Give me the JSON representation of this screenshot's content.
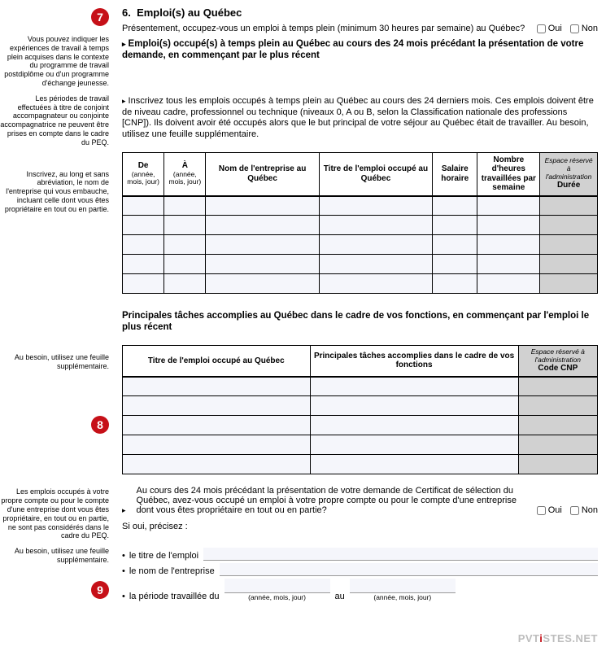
{
  "section": {
    "number": "6.",
    "title": "Emploi(s) au Québec"
  },
  "badges": {
    "b7": "7",
    "b8": "8",
    "b9": "9"
  },
  "q1": {
    "text": "Présentement, occupez-vous un emploi à temps plein (minimum 30 heures par semaine) au Québec?",
    "oui": "Oui",
    "non": "Non"
  },
  "notes": {
    "n1": "Vous pouvez indiquer les expériences de travail à temps plein acquises dans le contexte du programme de travail postdiplôme ou d'un programme d'échange jeunesse.",
    "n2": "Les périodes de travail effectuées à titre de conjoint accompagnateur ou conjointe accompagnatrice ne peuvent être prises en compte dans le cadre du PEQ.",
    "n3": "Inscrivez, au long et sans abréviation, le nom de l'entreprise qui vous embauche, incluant celle dont vous êtes propriétaire en tout ou en partie.",
    "n4": "Au besoin, utilisez une feuille supplémentaire.",
    "n5": "Les emplois occupés à votre propre compte ou pour le compte d'une entreprise dont vous êtes propriétaire, en tout ou en partie, ne sont pas considérés dans le cadre du PEQ.",
    "n6": "Au besoin, utilisez une feuille supplémentaire."
  },
  "subtitle1": "Emploi(s) occupé(s) à temps plein au Québec au cours des 24 mois précédant la présentation de votre demande, en commençant par le plus récent",
  "para1": "Inscrivez tous les emplois occupés à temps plein au Québec au cours des 24 derniers mois. Ces emplois doivent être de niveau cadre, professionnel ou technique (niveaux 0, A ou B, selon la Classification nationale des professions [CNP]). Ils doivent avoir été occupés alors que le but principal de votre séjour au Québec était de travailler. Au besoin, utilisez une feuille supplémentaire.",
  "table1": {
    "h_de": "De",
    "h_de_sub": "(année, mois, jour)",
    "h_a": "À",
    "h_a_sub": "(année, mois, jour)",
    "h_nom": "Nom de l'entreprise au Québec",
    "h_titre": "Titre de l'emploi occupé au Québec",
    "h_salaire": "Salaire horaire",
    "h_heures": "Nombre d'heures travaillées par semaine",
    "h_admin_it": "Espace réservé à l'administration",
    "h_admin": "Durée",
    "rows": 5,
    "col_widths": [
      "50px",
      "50px",
      "136px",
      "136px",
      "54px",
      "75px",
      "69px"
    ]
  },
  "subtitle2": "Principales tâches accomplies au Québec dans le cadre de vos fonctions, en commençant par l'emploi le plus récent",
  "table2": {
    "h_titre": "Titre de l'emploi occupé au Québec",
    "h_taches": "Principales tâches accomplies dans le cadre de vos fonctions",
    "h_admin_it": "Espace réservé à l'administration",
    "h_admin": "Code CNP",
    "rows": 5,
    "col_widths": [
      "225px",
      "250px",
      "95px"
    ]
  },
  "q2": {
    "text": "Au cours des 24 mois précédant la présentation de votre demande de Certificat de sélection du Québec, avez-vous occupé un emploi à votre propre compte ou pour le compte d'une entreprise dont vous êtes propriétaire en tout ou en partie?",
    "oui": "Oui",
    "non": "Non"
  },
  "precise": {
    "label": "Si oui, précisez :",
    "l1": "le titre de l'emploi",
    "l2": "le nom de l'entreprise",
    "l3": "la période travaillée du",
    "au": "au",
    "hint": "(année, mois, jour)"
  },
  "watermark": {
    "a": "PVT",
    "b": "STES",
    "c": ".NET"
  }
}
